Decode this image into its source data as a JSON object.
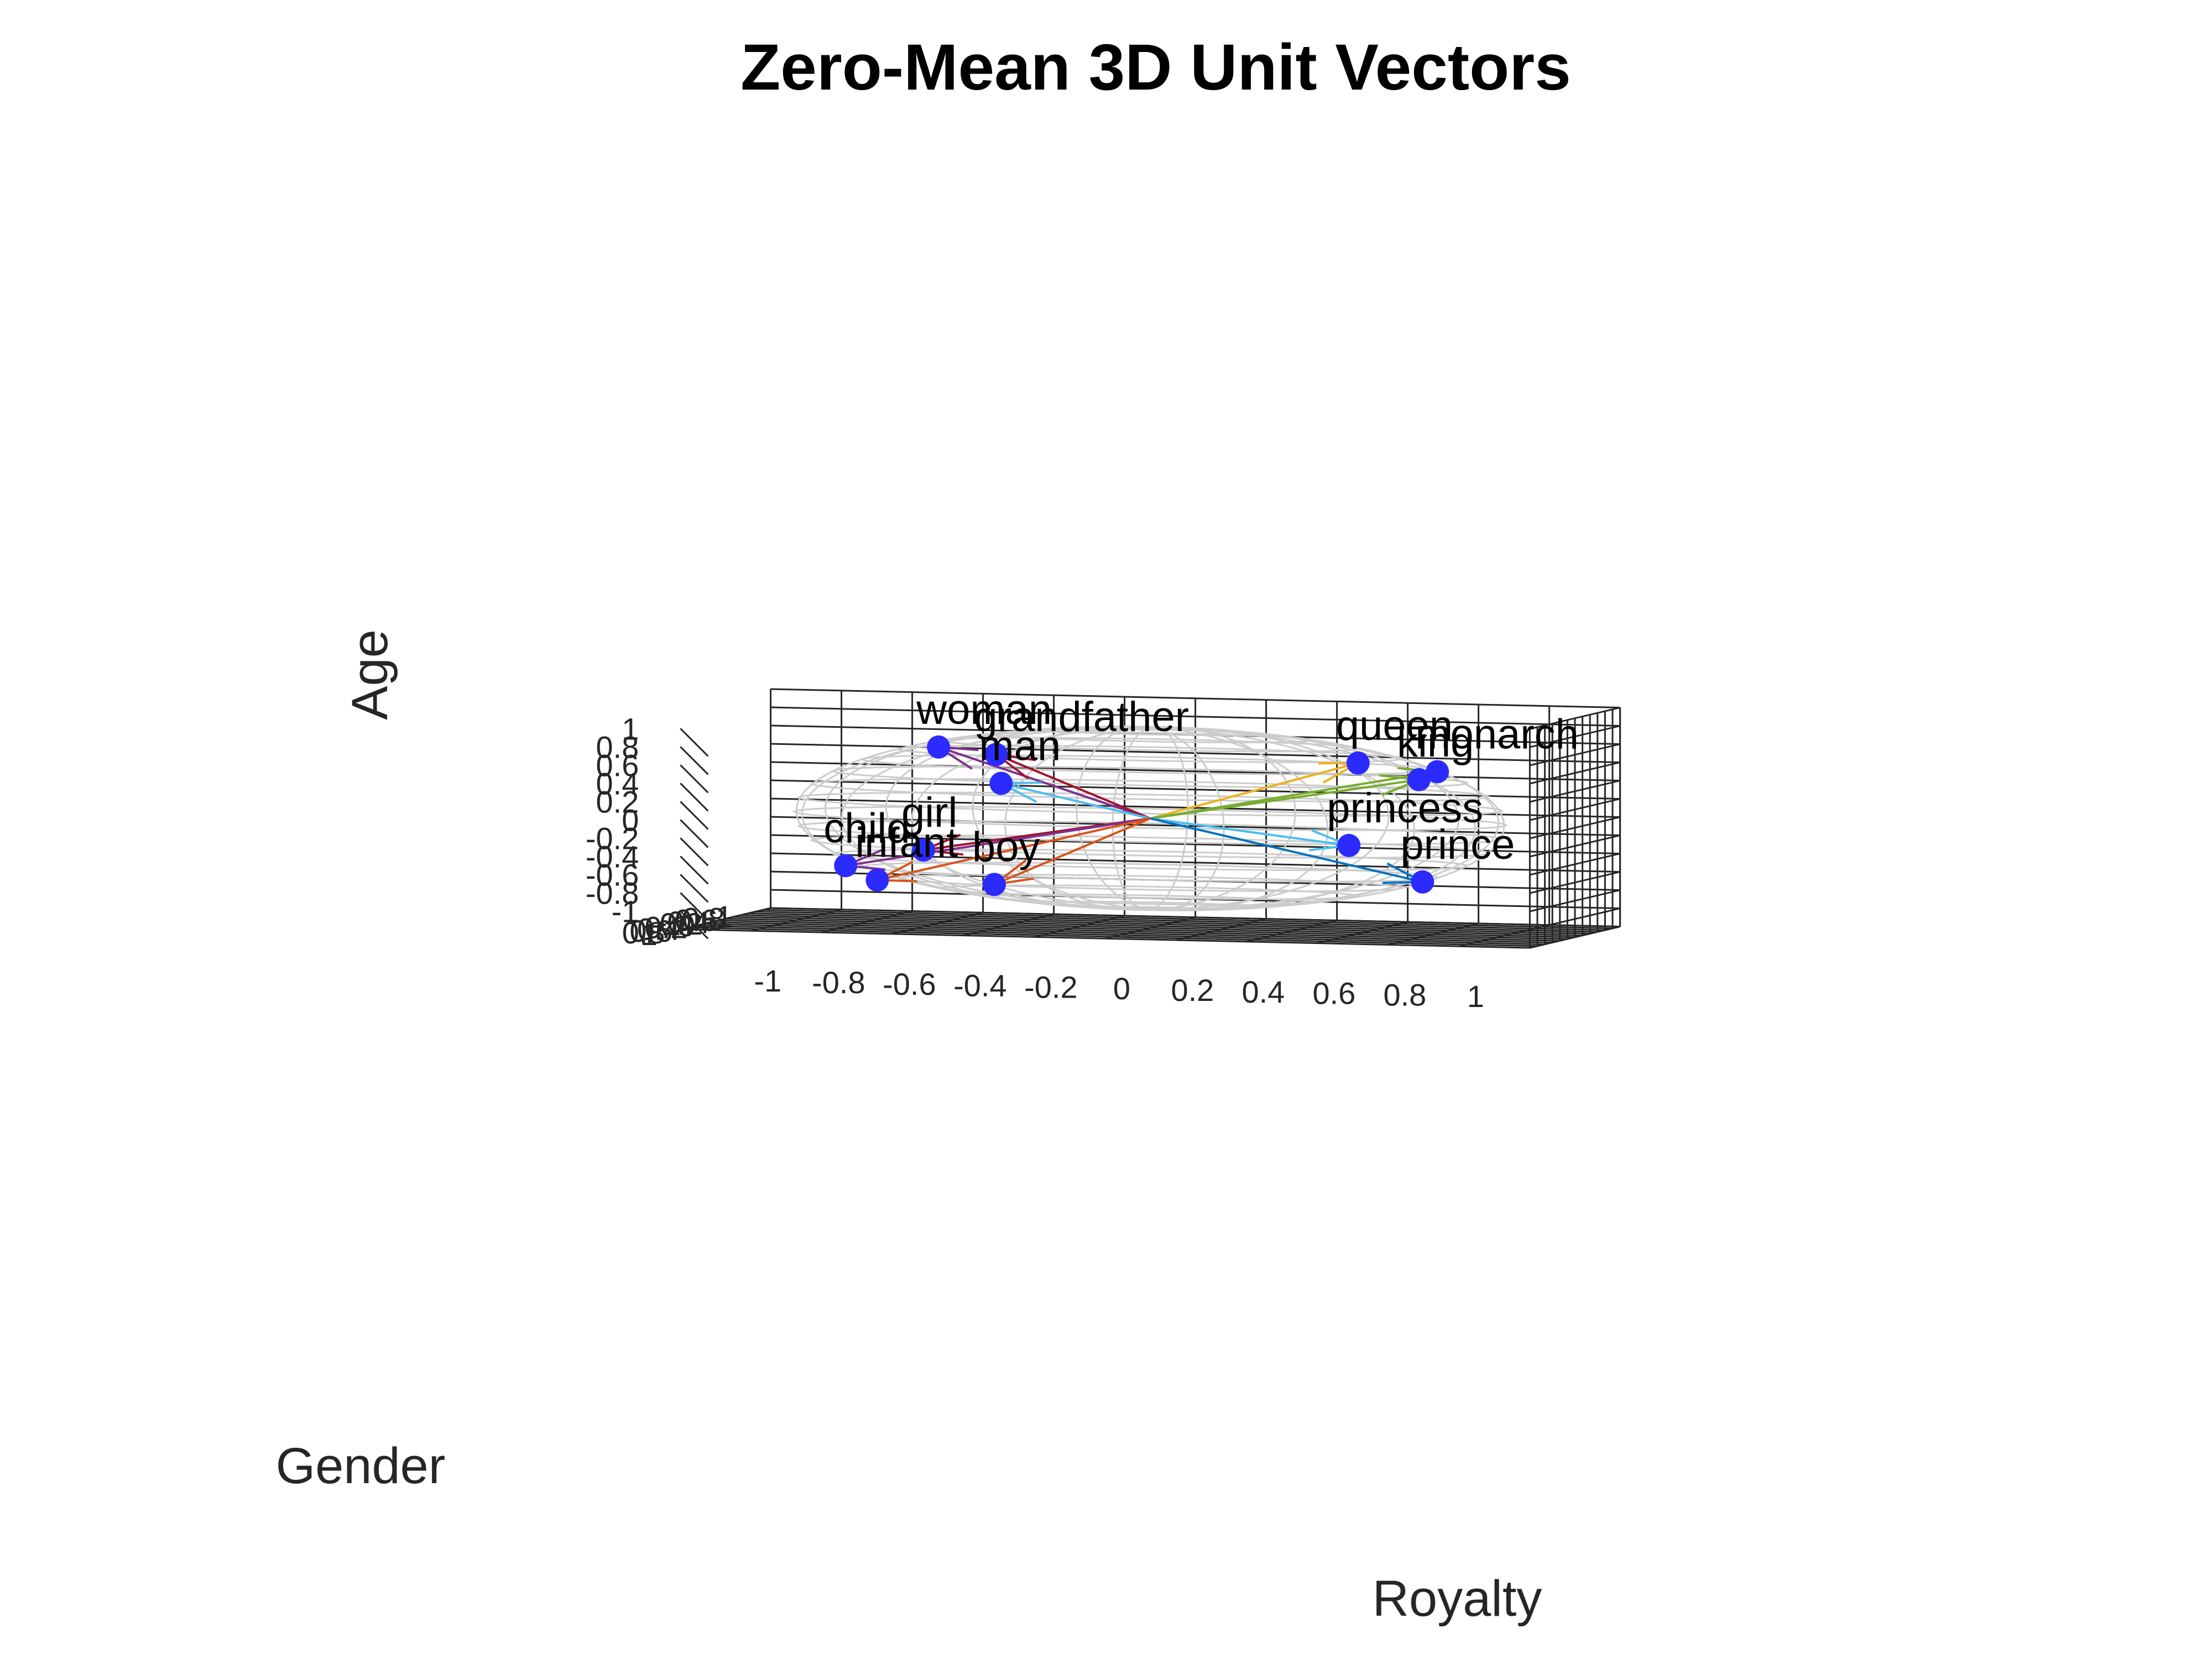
{
  "chart_data": {
    "type": "scatter",
    "projection": "3d",
    "title": "Zero-Mean 3D Unit Vectors",
    "xlabel": "Royalty",
    "ylabel": "Gender",
    "zlabel": "Age",
    "xlim": [
      -1.2,
      1.2
    ],
    "ylim": [
      -1.2,
      1.2
    ],
    "zlim": [
      -1.2,
      1.2
    ],
    "x_ticks": [
      -1,
      -0.8,
      -0.6,
      -0.4,
      -0.2,
      0,
      0.2,
      0.4,
      0.6,
      0.8,
      1
    ],
    "x_tick_labels": [
      "-1",
      "-0.8",
      "-0.6",
      "-0.4",
      "-0.2",
      "0",
      "0.2",
      "0.4",
      "0.6",
      "0.8",
      "1"
    ],
    "y_ticks": [
      1,
      0.8,
      0.6,
      0.4,
      0.2,
      0,
      -0.2,
      -0.4,
      -0.6,
      -0.8,
      -1
    ],
    "y_tick_labels": [
      "1",
      "0.8",
      "0.6",
      "0.4",
      "0.2",
      "0",
      "-0.2",
      "-0.4",
      "-0.6",
      "-0.8",
      "-1"
    ],
    "z_ticks": [
      1,
      0.8,
      0.6,
      0.4,
      0.2,
      0,
      -0.2,
      -0.4,
      -0.6,
      -0.8,
      -1
    ],
    "z_tick_labels": [
      "1",
      "0.8",
      "0.6",
      "0.4",
      "0.2",
      "0",
      "-0.2",
      "-0.4",
      "-0.6",
      "-0.8",
      "-1"
    ],
    "grid": true,
    "unit_sphere": true,
    "marker_color": "#2b2bff",
    "sphere_color": "#cccccc",
    "points": [
      {
        "label": "woman",
        "x": -0.63,
        "y": -0.3,
        "z": 0.7,
        "arrow_color": "#7e2f8e"
      },
      {
        "label": "grandfather",
        "x": -0.43,
        "y": 0.05,
        "z": 0.67,
        "arrow_color": "#a2142f"
      },
      {
        "label": "man",
        "x": -0.4,
        "y": 0.2,
        "z": 0.37,
        "arrow_color": "#4dbeee"
      },
      {
        "label": "queen",
        "x": 0.55,
        "y": -0.35,
        "z": 0.62,
        "arrow_color": "#edb120"
      },
      {
        "label": "monarch",
        "x": 0.79,
        "y": -0.2,
        "z": 0.56,
        "arrow_color": "#77ac30"
      },
      {
        "label": "king",
        "x": 0.77,
        "y": 0.1,
        "z": 0.5,
        "arrow_color": "#77ac30"
      },
      {
        "label": "princess",
        "x": 0.54,
        "y": -0.2,
        "z": -0.27,
        "arrow_color": "#4dbeee"
      },
      {
        "label": "prince",
        "x": 0.78,
        "y": 0.1,
        "z": -0.62,
        "arrow_color": "#0072bd"
      },
      {
        "label": "girl",
        "x": -0.63,
        "y": 0.1,
        "z": -0.39,
        "arrow_color": "#a2142f"
      },
      {
        "label": "child",
        "x": -0.85,
        "y": 0.1,
        "z": -0.58,
        "arrow_color": "#7e2f8e"
      },
      {
        "label": "infant",
        "x": -0.75,
        "y": 0.2,
        "z": -0.72,
        "arrow_color": "#d95319"
      },
      {
        "label": "boy",
        "x": -0.43,
        "y": 0.1,
        "z": -0.75,
        "arrow_color": "#d95319"
      }
    ]
  }
}
